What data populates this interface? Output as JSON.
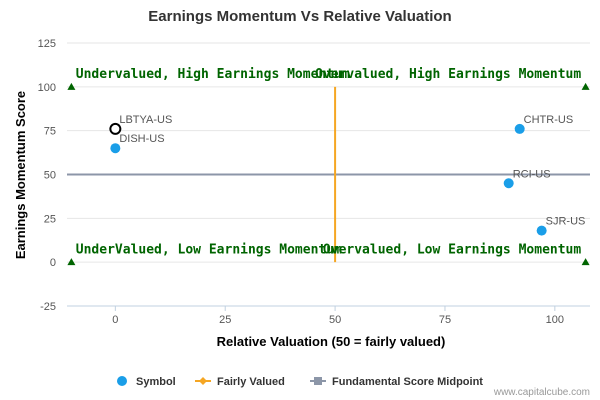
{
  "chart_data": {
    "type": "scatter",
    "title": "Earnings Momentum Vs Relative Valuation",
    "xlabel": "Relative Valuation (50 = fairly valued)",
    "ylabel": "Earnings Momentum Score",
    "xlim": [
      -11,
      108
    ],
    "ylim": [
      -25,
      125
    ],
    "xticks": [
      0,
      25,
      50,
      75,
      100
    ],
    "yticks": [
      -25,
      0,
      25,
      50,
      75,
      100,
      125
    ],
    "grid": "horizontal",
    "points": [
      {
        "label": "LBTYA-US",
        "x": 0,
        "y": 76,
        "style": "hollow"
      },
      {
        "label": "DISH-US",
        "x": 0,
        "y": 65,
        "style": "filled"
      },
      {
        "label": "CHTR-US",
        "x": 92,
        "y": 76,
        "style": "filled"
      },
      {
        "label": "RCI-US",
        "x": 89.5,
        "y": 45,
        "style": "filled"
      },
      {
        "label": "SJR-US",
        "x": 97,
        "y": 18,
        "style": "filled"
      }
    ],
    "fairly_valued_line": {
      "x": 50,
      "y_range": [
        0,
        100
      ]
    },
    "midpoint_line": {
      "y": 50,
      "x_range": [
        -11,
        108
      ]
    },
    "corner_markers": [
      {
        "x": -10,
        "y": 100
      },
      {
        "x": 107,
        "y": 100
      },
      {
        "x": -10,
        "y": 0
      },
      {
        "x": 107,
        "y": 0
      }
    ],
    "quadrant_labels": [
      {
        "text": "Undervalued, High Earnings Momentum",
        "x": -9,
        "y": 105,
        "anchor": "start"
      },
      {
        "text": "Overvalued, High Earnings Momentum",
        "x": 106,
        "y": 105,
        "anchor": "end"
      },
      {
        "text": "UnderValued, Low Earnings Momentum",
        "x": -9,
        "y": 5,
        "anchor": "start"
      },
      {
        "text": "Overvalued, Low Earnings Momentum",
        "x": 106,
        "y": 5,
        "anchor": "end"
      }
    ],
    "legend": {
      "position": "bottom",
      "items": [
        {
          "name": "Symbol",
          "marker": "circle"
        },
        {
          "name": "Fairly Valued",
          "marker": "line-diamond"
        },
        {
          "name": "Fundamental Score Midpoint",
          "marker": "line-square"
        }
      ]
    },
    "colors": {
      "point": "#1a9ee8",
      "fair_line": "#f5a623",
      "mid_line": "#8c96a8",
      "triangle": "#006400",
      "grid": "#e6e6e6"
    }
  },
  "credit": "www.capitalcube.com"
}
